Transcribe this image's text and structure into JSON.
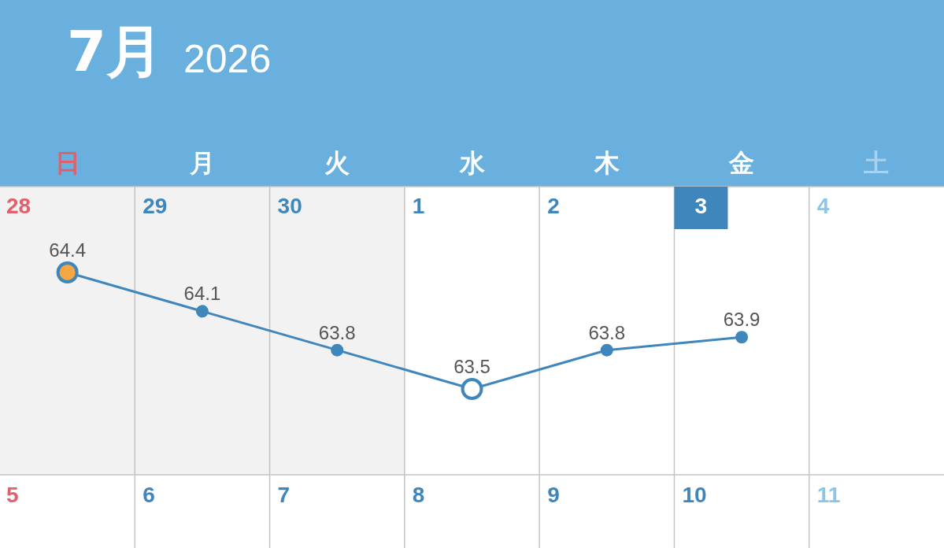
{
  "chart_data": {
    "type": "line",
    "title": "7月",
    "subtitle": "2026",
    "categories": [
      "日",
      "月",
      "火",
      "水",
      "木",
      "金",
      "土"
    ],
    "series": [
      {
        "color": "#3f86bc",
        "values": [
          64.4,
          64.1,
          63.8,
          63.5,
          63.8,
          63.9,
          null
        ],
        "colors": [
          "#f4a742",
          "#3f86bc",
          "#3f86bc",
          "#ffffff",
          "#3f86bc",
          "#3f86bc",
          null
        ]
      }
    ],
    "annotations": [
      "28",
      "29",
      "30",
      "1",
      "2",
      "3",
      "4",
      "5",
      "6",
      "7",
      "8",
      "9",
      "10",
      "11"
    ],
    "bands": [
      {
        "axis": "x",
        "from": "日",
        "to": "火",
        "color": "#f2f2f2"
      }
    ],
    "data_labels": true,
    "marker": "circle",
    "grid": true
  }
}
